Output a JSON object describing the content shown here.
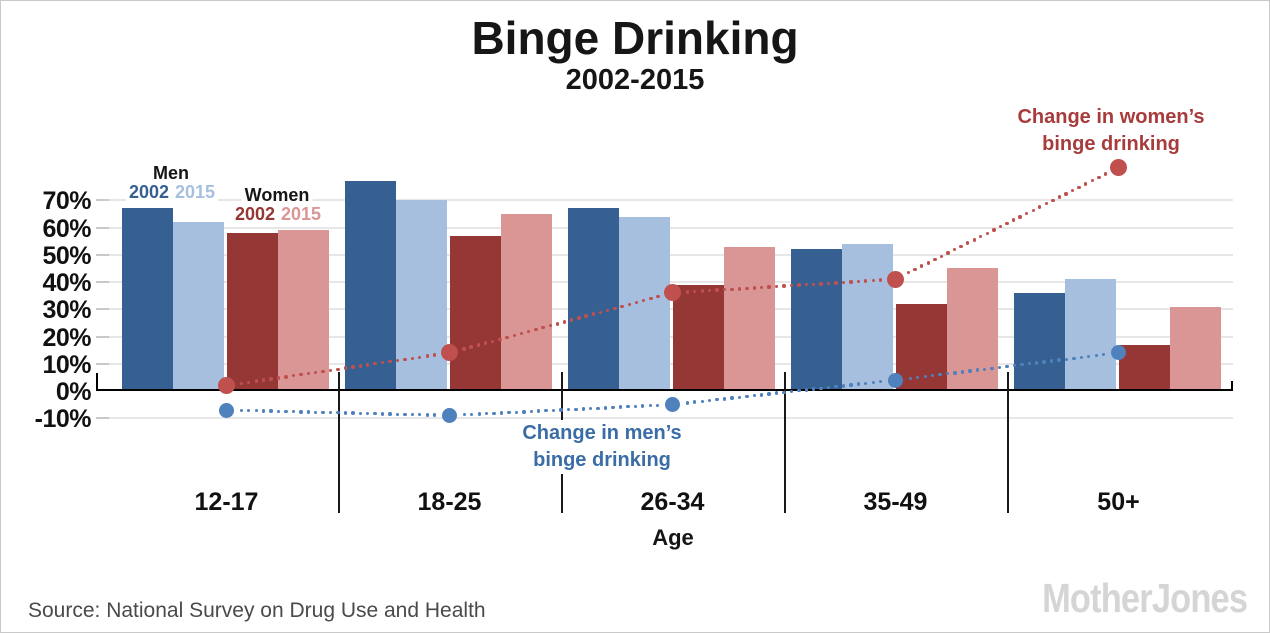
{
  "title": "Binge Drinking",
  "subtitle": "2002-2015",
  "legend": {
    "men_label": "Men",
    "men_2002": "2002",
    "men_2015": "2015",
    "women_label": "Women",
    "women_2002": "2002",
    "women_2015": "2015"
  },
  "annotations": {
    "women_line1": "Change in women’s",
    "women_line2": "binge drinking",
    "men_line1": "Change in men’s",
    "men_line2": "binge drinking"
  },
  "axis": {
    "x_label": "Age",
    "y_ticks": [
      {
        "label": "70%",
        "value": 70
      },
      {
        "label": "60%",
        "value": 60
      },
      {
        "label": "50%",
        "value": 50
      },
      {
        "label": "40%",
        "value": 40
      },
      {
        "label": "30%",
        "value": 30
      },
      {
        "label": "20%",
        "value": 20
      },
      {
        "label": "10%",
        "value": 10
      },
      {
        "label": "0%",
        "value": 0
      },
      {
        "label": "-10%",
        "value": -10
      }
    ]
  },
  "colors": {
    "men_2002": "#376092",
    "men_2015": "#a7bfde",
    "women_2002": "#953735",
    "women_2015": "#d99694",
    "men_line": "#4f81bd",
    "women_line": "#c0504d",
    "men_text": "#3a6da6",
    "women_text": "#a83c3c"
  },
  "chart_data": {
    "type": "bar",
    "title": "Binge Drinking",
    "subtitle": "2002-2015",
    "xlabel": "Age",
    "unit": "%",
    "ylim": [
      -10,
      70
    ],
    "grid": true,
    "categories": [
      "12-17",
      "18-25",
      "26-34",
      "35-49",
      "50+"
    ],
    "bar_series": [
      {
        "name": "Men 2002",
        "color": "#376092",
        "values": [
          67,
          77,
          67,
          52,
          36
        ]
      },
      {
        "name": "Men 2015",
        "color": "#a7bfde",
        "values": [
          62,
          70,
          64,
          54,
          41
        ]
      },
      {
        "name": "Women 2002",
        "color": "#953735",
        "values": [
          58,
          57,
          39,
          32,
          17
        ]
      },
      {
        "name": "Women 2015",
        "color": "#d99694",
        "values": [
          59,
          65,
          53,
          45,
          31
        ]
      }
    ],
    "line_series": [
      {
        "name": "Change in men’s binge drinking",
        "color": "#4f81bd",
        "style": "dotted",
        "values": [
          -7,
          -9,
          -5,
          4,
          14
        ]
      },
      {
        "name": "Change in women’s binge drinking",
        "color": "#c0504d",
        "style": "dotted",
        "values": [
          2,
          14,
          36,
          41,
          82
        ]
      }
    ]
  },
  "footer": {
    "source": "Source: National Survey on Drug Use and Health",
    "logo": "MotherJones"
  }
}
